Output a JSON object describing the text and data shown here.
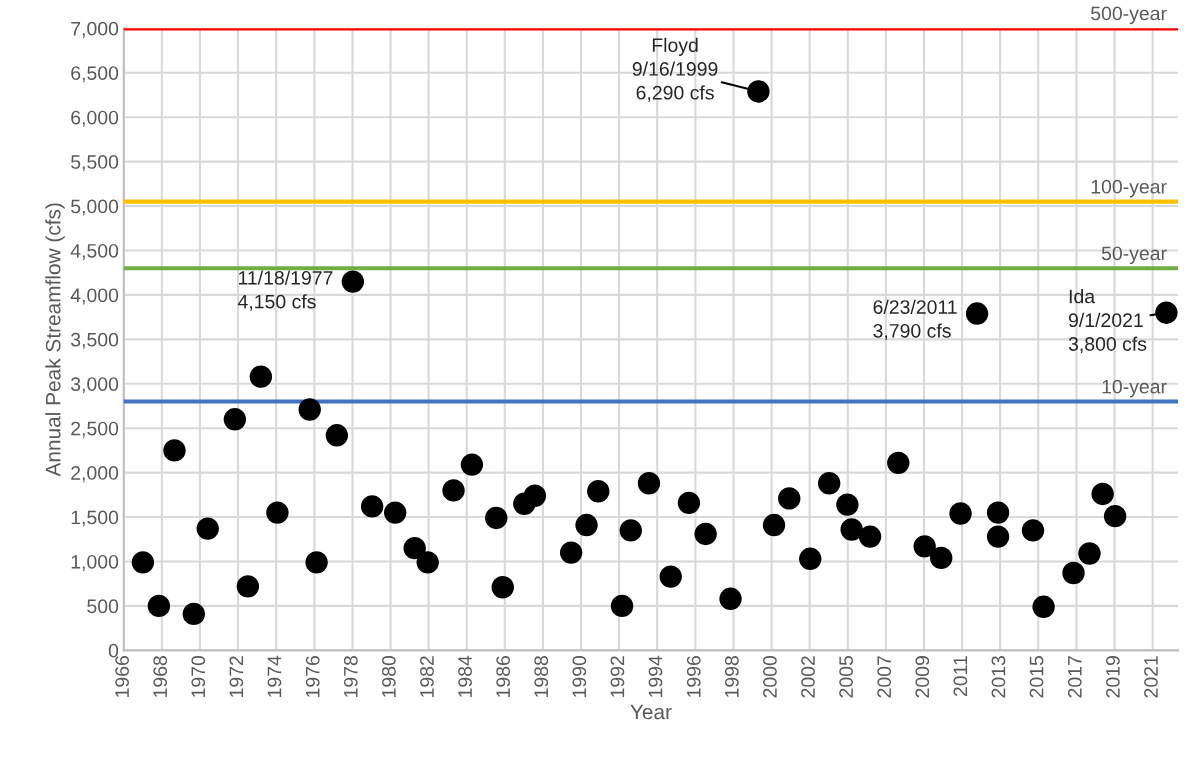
{
  "chart_data": {
    "type": "scatter",
    "xlabel": "Year",
    "ylabel": "Annual Peak Streamflow (cfs)",
    "series": [
      {
        "color": "#000000",
        "x": [
          1966.58,
          1967.44,
          1968.28,
          1969.32,
          1970.07,
          1971.53,
          1972.23,
          1972.93,
          1973.82,
          1975.56,
          1975.93,
          1977.02,
          1977.88,
          1978.92,
          1980.16,
          1981.21,
          1981.91,
          1983.3,
          1984.29,
          1985.6,
          1985.95,
          1987.11,
          1987.68,
          1989.63,
          1990.46,
          1991.09,
          1992.37,
          1992.84,
          1993.82,
          1994.99,
          1995.97,
          1996.87,
          1998.21,
          1999.71,
          2000.55,
          2001.37,
          2002.5,
          2003.52,
          2004.5,
          2004.73,
          2005.72,
          2007.24,
          2008.66,
          2009.55,
          2010.59,
          2011.48,
          2012.61,
          2012.61,
          2014.49,
          2015.06,
          2016.67,
          2017.53,
          2018.24,
          2018.91,
          2021.67
        ],
        "values": [
          990,
          500,
          2250,
          410,
          1370,
          2600,
          720,
          3080,
          1550,
          2710,
          990,
          2420,
          4150,
          1620,
          1550,
          1150,
          990,
          1800,
          2090,
          1490,
          710,
          1650,
          1740,
          1100,
          1410,
          1790,
          500,
          1350,
          1880,
          830,
          1660,
          1310,
          580,
          6290,
          1410,
          1710,
          1030,
          1880,
          1640,
          1360,
          1280,
          2110,
          1170,
          1040,
          1540,
          3790,
          1550,
          1280,
          1350,
          490,
          870,
          1090,
          1760,
          1510,
          3800
        ]
      }
    ],
    "marker": "circle",
    "grid": true,
    "legend": false,
    "xlim": [
      1965.55,
      2022.3
    ],
    "xticks": [
      {
        "value": 1965.55,
        "label": "1966"
      },
      {
        "value": 1967.6,
        "label": "1968"
      },
      {
        "value": 1969.65,
        "label": "1970"
      },
      {
        "value": 1971.7,
        "label": "1972"
      },
      {
        "value": 1973.75,
        "label": "1974"
      },
      {
        "value": 1975.81,
        "label": "1976"
      },
      {
        "value": 1977.86,
        "label": "1978"
      },
      {
        "value": 1979.91,
        "label": "1980"
      },
      {
        "value": 1981.96,
        "label": "1982"
      },
      {
        "value": 1984.01,
        "label": "1984"
      },
      {
        "value": 1986.06,
        "label": "1986"
      },
      {
        "value": 1988.11,
        "label": "1988"
      },
      {
        "value": 1990.16,
        "label": "1990"
      },
      {
        "value": 1992.21,
        "label": "1992"
      },
      {
        "value": 1994.26,
        "label": "1994"
      },
      {
        "value": 1996.32,
        "label": "1996"
      },
      {
        "value": 1998.37,
        "label": "1998"
      },
      {
        "value": 2000.42,
        "label": "2000"
      },
      {
        "value": 2002.47,
        "label": "2002"
      },
      {
        "value": 2004.52,
        "label": "2005"
      },
      {
        "value": 2006.57,
        "label": "2007"
      },
      {
        "value": 2008.62,
        "label": "2009"
      },
      {
        "value": 2010.67,
        "label": "2011"
      },
      {
        "value": 2012.72,
        "label": "2013"
      },
      {
        "value": 2014.77,
        "label": "2015"
      },
      {
        "value": 2016.83,
        "label": "2017"
      },
      {
        "value": 2018.88,
        "label": "2019"
      },
      {
        "value": 2020.93,
        "label": "2021"
      }
    ],
    "ylim": [
      0,
      7000
    ],
    "yticks": [
      0,
      500,
      {
        "value": 1000,
        "label": "1,000"
      },
      {
        "value": 1500,
        "label": "1,500"
      },
      {
        "value": 2000,
        "label": "2,000"
      },
      {
        "value": 2500,
        "label": "2,500"
      },
      {
        "value": 3000,
        "label": "3,000"
      },
      {
        "value": 3500,
        "label": "3,500"
      },
      {
        "value": 4000,
        "label": "4,000"
      },
      {
        "value": 4500,
        "label": "4,500"
      },
      {
        "value": 5000,
        "label": "5,000"
      },
      {
        "value": 5500,
        "label": "5,500"
      },
      {
        "value": 6000,
        "label": "6,000"
      },
      {
        "value": 6500,
        "label": "6,500"
      },
      {
        "value": 7000,
        "label": "7,000"
      }
    ],
    "ref_lines": [
      {
        "axis": "y",
        "value": 7000,
        "label": "500-year",
        "color": "#ff0000"
      },
      {
        "axis": "y",
        "value": 5050,
        "label": "100-year",
        "color": "#ffc000"
      },
      {
        "axis": "y",
        "value": 4300,
        "label": "50-year",
        "color": "#70ad47"
      },
      {
        "axis": "y",
        "value": 2800,
        "label": "10-year",
        "color": "#4472c4"
      }
    ],
    "annotations": [
      {
        "text": "Floyd\n9/16/1999\n6,290 cfs",
        "x": 1999.71,
        "y": 6290
      },
      {
        "text": "11/18/1977\n4,150 cfs",
        "x": 1977.88,
        "y": 4150
      },
      {
        "text": "6/23/2011\n3,790 cfs",
        "x": 2011.48,
        "y": 3790
      },
      {
        "text": "Ida\n9/1/2021\n3,800 cfs",
        "x": 2021.67,
        "y": 3800
      }
    ]
  }
}
